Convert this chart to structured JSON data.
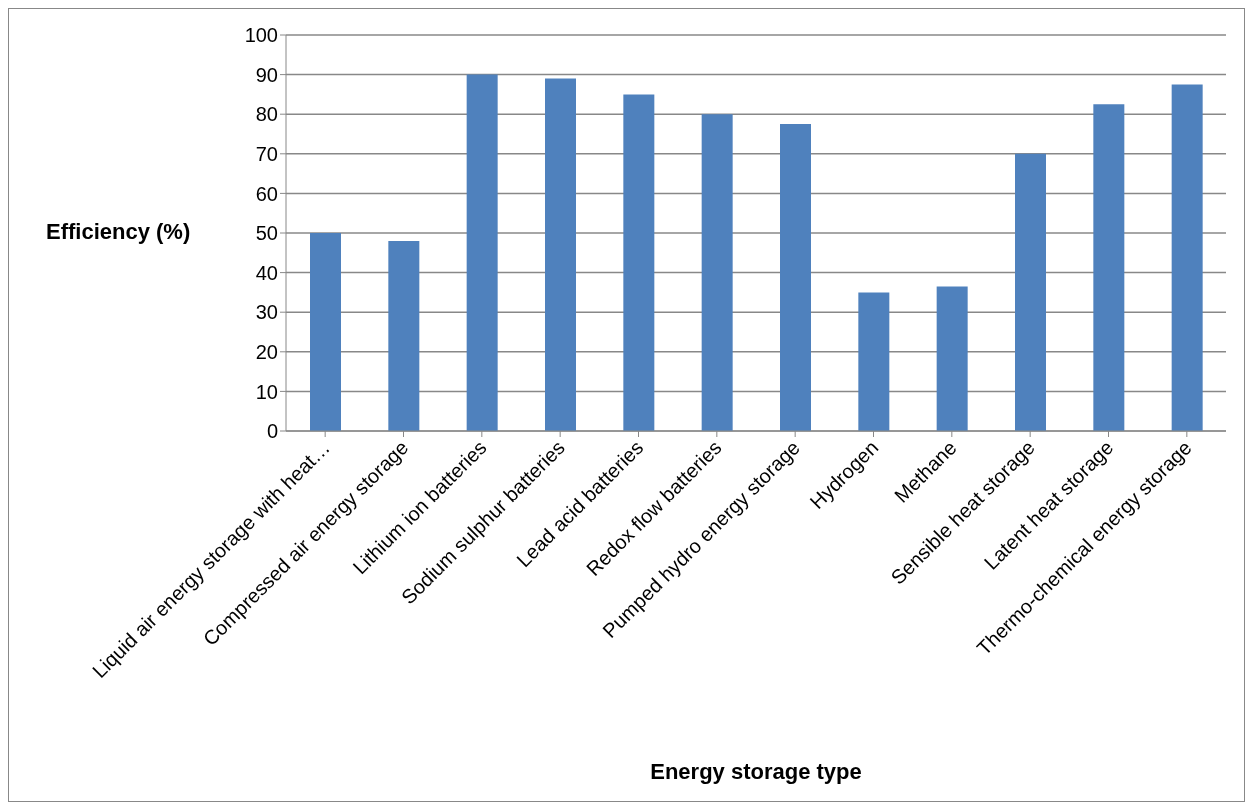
{
  "chart_data": {
    "type": "bar",
    "xlabel": "Energy storage type",
    "ylabel": "Efficiency (%)",
    "categories": [
      "Liquid air energy storage with heat…",
      "Compressed air energy storage",
      "Lithium ion batteries",
      "Sodium sulphur batteries",
      "Lead acid batteries",
      "Redox flow batteries",
      "Pumped hydro energy storage",
      "Hydrogen",
      "Methane",
      "Sensible heat storage",
      "Latent heat storage",
      "Thermo-chemical energy storage"
    ],
    "values": [
      50,
      48,
      90,
      89,
      85,
      80,
      77.5,
      35,
      36.5,
      70,
      82.5,
      87.5
    ],
    "color": "#4f81bd",
    "ylim": [
      0,
      100
    ],
    "yticks": [
      0,
      10,
      20,
      30,
      40,
      50,
      60,
      70,
      80,
      90,
      100
    ],
    "grid": "y"
  }
}
